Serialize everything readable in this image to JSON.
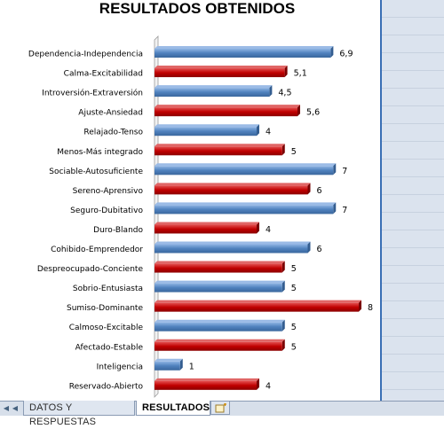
{
  "chart_data": {
    "type": "bar",
    "orientation": "horizontal",
    "title": "RESULTADOS OBTENIDOS",
    "categories": [
      "Dependencia-Independencia",
      "Calma-Excitabilidad",
      "Introversión-Extraversión",
      "Ajuste-Ansiedad",
      "Relajado-Tenso",
      "Menos-Más integrado",
      "Sociable-Autosuficiente",
      "Sereno-Aprensivo",
      "Seguro-Dubitativo",
      "Duro-Blando",
      "Cohibido-Emprendedor",
      "Despreocupado-Conciente",
      "Sobrio-Entusiasta",
      "Sumiso-Dominante",
      "Calmoso-Excitable",
      "Afectado-Estable",
      "Inteligencia",
      "Reservado-Abierto"
    ],
    "values": [
      6.9,
      5.1,
      4.5,
      5.6,
      4,
      5,
      7,
      6,
      7,
      4,
      6,
      5,
      5,
      8,
      5,
      5,
      1,
      4
    ],
    "value_labels": [
      "6,9",
      "5,1",
      "4,5",
      "5,6",
      "4",
      "5",
      "7",
      "6",
      "7",
      "4",
      "6",
      "5",
      "5",
      "8",
      "5",
      "5",
      "1",
      "4"
    ],
    "colors": [
      "#4f81bd",
      "#c00000",
      "#4f81bd",
      "#c00000",
      "#4f81bd",
      "#c00000",
      "#4f81bd",
      "#c00000",
      "#4f81bd",
      "#c00000",
      "#4f81bd",
      "#c00000",
      "#4f81bd",
      "#c00000",
      "#4f81bd",
      "#c00000",
      "#4f81bd",
      "#c00000"
    ],
    "xlim": [
      0,
      8
    ],
    "grid": false,
    "legend": "none",
    "style": "3d"
  },
  "sheet_tabs": [
    {
      "label": "DATOS Y RESPUESTAS",
      "active": false
    },
    {
      "label": "RESULTADOS",
      "active": true
    }
  ],
  "icons": {
    "nav": [
      "first-sheet-icon",
      "prev-sheet-icon"
    ],
    "new_sheet": "insert-worksheet-icon"
  }
}
